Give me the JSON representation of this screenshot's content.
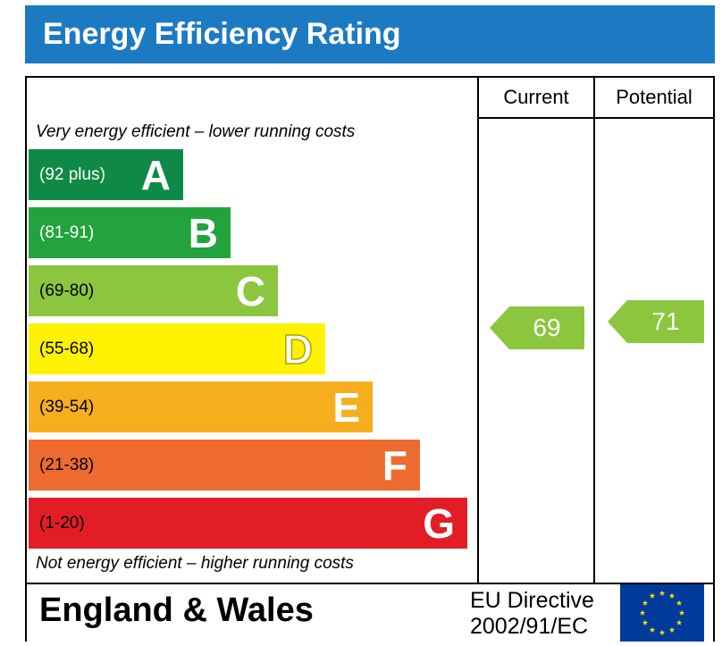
{
  "title": "Energy Efficiency Rating",
  "columns": {
    "current": "Current",
    "potential": "Potential"
  },
  "captions": {
    "top": "Very energy efficient – lower running costs",
    "bottom": "Not energy efficient – higher running costs"
  },
  "footer": {
    "country": "England & Wales",
    "directive_line1": "EU Directive",
    "directive_line2": "2002/91/EC",
    "flag_icon": "eu-flag-icon"
  },
  "chart_data": {
    "type": "bar",
    "bands": [
      {
        "letter": "A",
        "range": "(92 plus)",
        "color": "#0f8a46",
        "text_color": "#ffffff"
      },
      {
        "letter": "B",
        "range": "(81-91)",
        "color": "#22a33d",
        "text_color": "#ffffff"
      },
      {
        "letter": "C",
        "range": "(69-80)",
        "color": "#8cc63f",
        "text_color": "#000000"
      },
      {
        "letter": "D",
        "range": "(55-68)",
        "color": "#fff200",
        "text_color": "#000000"
      },
      {
        "letter": "E",
        "range": "(39-54)",
        "color": "#f7ae1e",
        "text_color": "#000000"
      },
      {
        "letter": "F",
        "range": "(21-38)",
        "color": "#ed6b2f",
        "text_color": "#000000"
      },
      {
        "letter": "G",
        "range": "(1-20)",
        "color": "#e31d25",
        "text_color": "#000000"
      }
    ],
    "current": {
      "value": 69,
      "band": "C",
      "color": "#8cc63f"
    },
    "potential": {
      "value": 71,
      "band": "C",
      "color": "#8cc63f"
    }
  }
}
